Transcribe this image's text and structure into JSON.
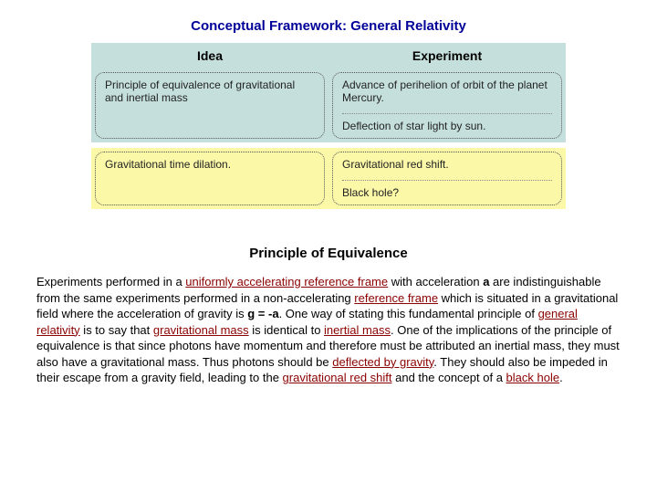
{
  "title": "Conceptual Framework: General Relativity",
  "table": {
    "headers": {
      "idea": "Idea",
      "experiment": "Experiment"
    },
    "rows": [
      {
        "bg": "row-blue",
        "idea": "Principle of equivalence of gravitational and inertial mass",
        "experiment_a": "Advance of perihelion of orbit of the planet Mercury.",
        "experiment_b": "Deflection of star light by sun."
      },
      {
        "bg": "row-yellow",
        "idea": "Gravitational time dilation.",
        "experiment_a": "Gravitational red shift.",
        "experiment_b": "Black hole?"
      }
    ]
  },
  "section_heading": "Principle of Equivalence",
  "paragraph": {
    "p1": "Experiments performed in a ",
    "l1": "uniformly accelerating reference frame",
    "p2": " with acceleration ",
    "b1": "a",
    "p3": " are indistinguishable from the same experiments performed in a non-accelerating ",
    "l2": "reference frame",
    "p4": " which is situated in a gravitational field where the acceleration of gravity is ",
    "b2": "g = -a",
    "p5": ". One way of stating this fundamental principle of ",
    "l3": "general relativity",
    "p6": " is to say that ",
    "l4": "gravitational mass",
    "p7": " is identical to ",
    "l5": "inertial mass",
    "p8": ". One of the implications of the principle of equivalence is that since photons have momentum and therefore must be attributed an inertial mass, they must also have a gravitational mass. Thus photons should be ",
    "l6": "deflected by gravity",
    "p9": ". They should also be impeded in their escape from a gravity field, leading to the ",
    "l7": "gravitational red shift",
    "p10": " and the concept of a ",
    "l8": "black hole",
    "p11": "."
  },
  "colors": {
    "title_color": "#000099",
    "link_color": "#8b0000",
    "row_blue": "#c5e0dc",
    "row_yellow": "#fbf8a8"
  }
}
